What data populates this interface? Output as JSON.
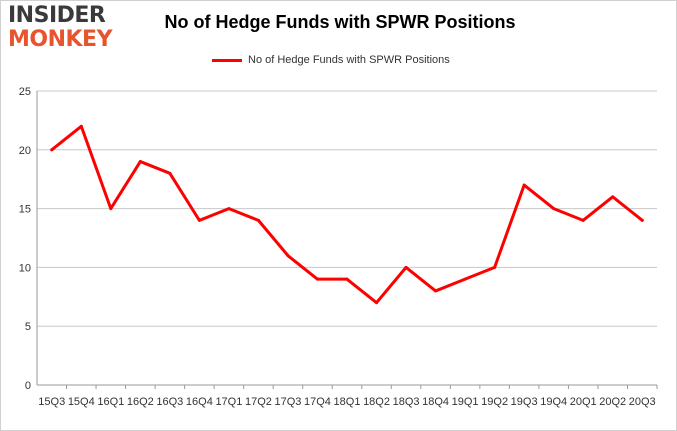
{
  "header": {
    "logo_top": "INSIDER",
    "logo_bottom": "MONKEY"
  },
  "colors": {
    "series": "#ff0000",
    "grid": "#c8c8c8",
    "logo_accent": "#e8542e"
  },
  "chart_data": {
    "type": "line",
    "title": "No of Hedge Funds with SPWR Positions",
    "xlabel": "",
    "ylabel": "",
    "ylim": [
      0,
      25
    ],
    "yticks": [
      0,
      5,
      10,
      15,
      20,
      25
    ],
    "grid": true,
    "legend_position": "top-center",
    "categories": [
      "15Q3",
      "15Q4",
      "16Q1",
      "16Q2",
      "16Q3",
      "16Q4",
      "17Q1",
      "17Q2",
      "17Q3",
      "17Q4",
      "18Q1",
      "18Q2",
      "18Q3",
      "18Q4",
      "19Q1",
      "19Q2",
      "19Q3",
      "19Q4",
      "20Q1",
      "20Q2",
      "20Q3"
    ],
    "series": [
      {
        "name": "No of Hedge Funds with SPWR Positions",
        "values": [
          20,
          22,
          15,
          19,
          18,
          14,
          15,
          14,
          11,
          9,
          9,
          7,
          10,
          8,
          9,
          10,
          17,
          15,
          14,
          16,
          14
        ]
      }
    ]
  }
}
